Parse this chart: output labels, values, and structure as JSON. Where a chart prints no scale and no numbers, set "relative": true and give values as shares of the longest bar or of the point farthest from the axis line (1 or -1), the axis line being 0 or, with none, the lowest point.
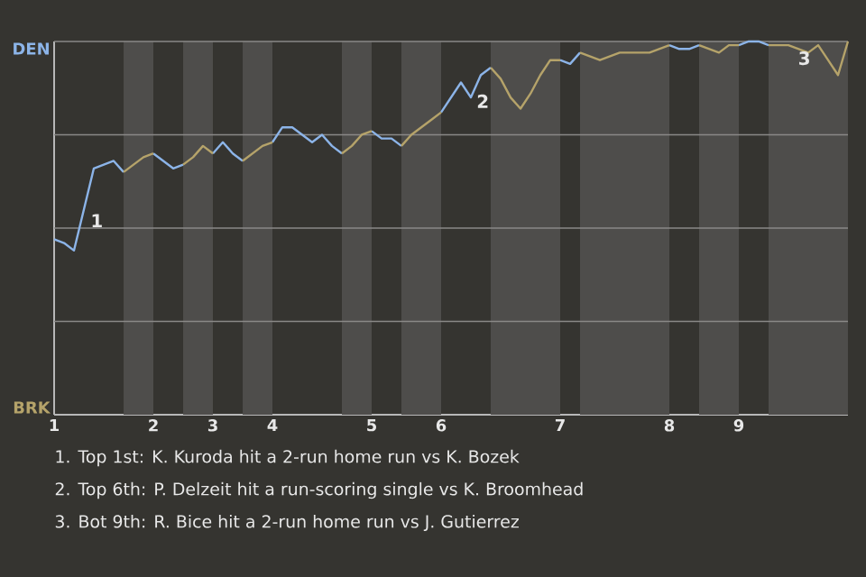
{
  "chart_data": {
    "type": "line",
    "relative": true,
    "categories": [
      "1",
      null,
      null,
      null,
      null,
      null,
      null,
      null,
      null,
      null,
      "2",
      null,
      null,
      null,
      null,
      null,
      "3",
      null,
      null,
      null,
      null,
      null,
      "4",
      null,
      null,
      null,
      null,
      null,
      null,
      null,
      null,
      null,
      "5",
      null,
      null,
      null,
      null,
      null,
      null,
      "6",
      null,
      null,
      null,
      null,
      null,
      null,
      null,
      null,
      null,
      null,
      null,
      "7",
      null,
      null,
      null,
      null,
      null,
      null,
      null,
      null,
      null,
      null,
      "8",
      null,
      null,
      null,
      null,
      null,
      null,
      "9",
      null,
      null,
      null,
      null,
      null,
      null,
      null,
      null,
      null,
      null,
      null
    ],
    "series": [
      {
        "color": "#8cb4e8",
        "values": [
          0.47,
          0.46,
          0.44,
          0.55,
          0.66,
          0.67,
          0.68,
          0.65,
          null,
          null,
          0.7,
          0.68,
          0.66,
          0.67,
          null,
          null,
          0.7,
          0.73,
          0.7,
          0.68,
          null,
          null,
          0.73,
          0.77,
          0.77,
          0.75,
          0.73,
          0.75,
          0.72,
          0.7,
          null,
          null,
          0.76,
          0.74,
          0.74,
          0.72,
          null,
          null,
          null,
          0.81,
          0.85,
          0.89,
          0.85,
          0.91,
          0.93,
          null,
          null,
          null,
          null,
          null,
          null,
          0.95,
          0.94,
          0.97,
          null,
          null,
          null,
          null,
          null,
          null,
          null,
          null,
          0.99,
          0.98,
          0.98,
          0.99,
          null,
          null,
          null,
          0.99,
          1.0,
          1.0,
          0.99,
          null,
          null,
          null,
          null,
          null,
          null,
          null,
          null
        ]
      },
      {
        "color": "#b5a36a",
        "values": [
          null,
          null,
          null,
          null,
          null,
          null,
          null,
          0.65,
          0.67,
          0.69,
          0.7,
          null,
          null,
          0.67,
          0.69,
          0.72,
          0.7,
          null,
          null,
          0.68,
          0.7,
          0.72,
          0.73,
          null,
          null,
          null,
          null,
          null,
          null,
          0.7,
          0.72,
          0.75,
          0.76,
          null,
          null,
          0.72,
          0.75,
          0.77,
          0.79,
          0.81,
          null,
          null,
          null,
          null,
          0.93,
          0.9,
          0.85,
          0.82,
          0.86,
          0.91,
          0.95,
          0.95,
          null,
          0.97,
          0.96,
          0.95,
          0.96,
          0.97,
          0.97,
          0.97,
          0.97,
          0.98,
          0.99,
          null,
          null,
          0.99,
          0.98,
          0.97,
          0.99,
          0.99,
          null,
          null,
          0.99,
          0.99,
          0.99,
          0.98,
          0.97,
          0.99,
          0.95,
          0.91,
          1.0
        ]
      }
    ],
    "grid": "y",
    "annotations": [
      "DEN",
      "BRK",
      "1",
      "2",
      "3",
      "1. Top 1st: K. Kuroda hit a 2-run home run vs K. Bozek",
      "2. Top 6th: P. Delzeit hit a run-scoring single vs K. Broomhead",
      "3. Bot 9th: R. Bice hit a 2-run home run vs J. Gutierrez"
    ]
  }
}
